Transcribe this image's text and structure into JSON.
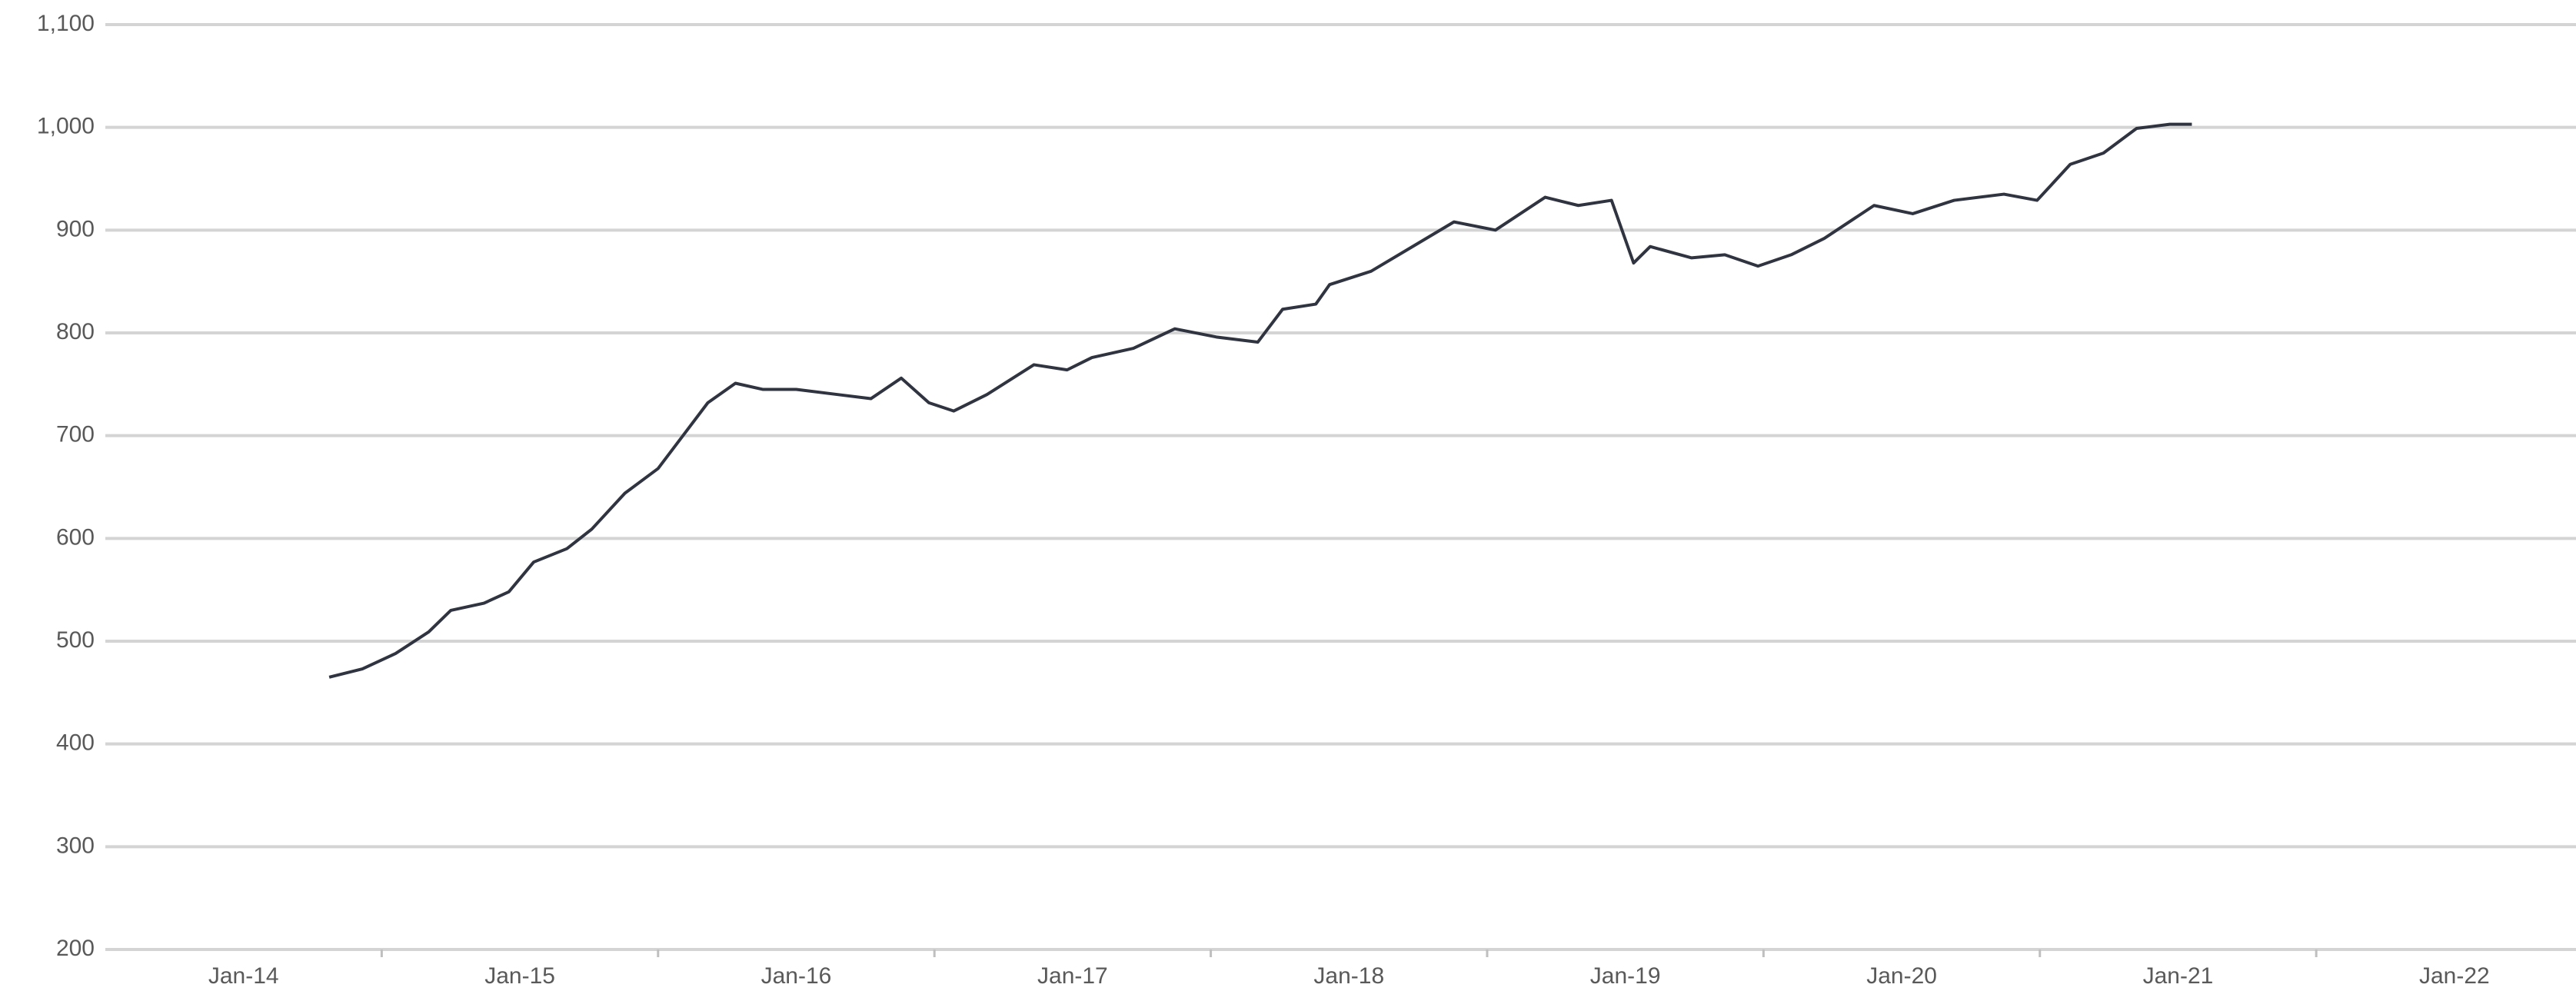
{
  "chart_data": {
    "type": "line",
    "x": [
      2014.31,
      2014.43,
      2014.55,
      2014.67,
      2014.75,
      2014.87,
      2014.96,
      2015.05,
      2015.17,
      2015.26,
      2015.38,
      2015.5,
      2015.59,
      2015.68,
      2015.78,
      2015.88,
      2016.0,
      2016.15,
      2016.27,
      2016.38,
      2016.48,
      2016.57,
      2016.69,
      2016.86,
      2016.98,
      2017.07,
      2017.22,
      2017.37,
      2017.52,
      2017.67,
      2017.76,
      2017.88,
      2017.93,
      2018.08,
      2018.23,
      2018.38,
      2018.53,
      2018.71,
      2018.83,
      2018.95,
      2019.03,
      2019.09,
      2019.24,
      2019.36,
      2019.48,
      2019.6,
      2019.72,
      2019.9,
      2020.04,
      2020.19,
      2020.37,
      2020.49,
      2020.61,
      2020.73,
      2020.85,
      2020.97,
      2021.05
    ],
    "series": [
      {
        "color": "#2f3440",
        "values": [
          465,
          473,
          488,
          509,
          530,
          537,
          548,
          577,
          590,
          609,
          644,
          668,
          700,
          732,
          751,
          745,
          745,
          740,
          736,
          756,
          732,
          724,
          740,
          769,
          764,
          776,
          785,
          804,
          796,
          791,
          823,
          828,
          847,
          860,
          884,
          908,
          900,
          932,
          924,
          929,
          868,
          884,
          873,
          876,
          865,
          876,
          892,
          924,
          916,
          929,
          935,
          929,
          964,
          975,
          999,
          1003,
          1003
        ]
      }
    ],
    "xlim": [
      2013.5,
      2022.44
    ],
    "xticks": [
      {
        "value": 2014,
        "label": "Jan-14"
      },
      {
        "value": 2015,
        "label": "Jan-15"
      },
      {
        "value": 2016,
        "label": "Jan-16"
      },
      {
        "value": 2017,
        "label": "Jan-17"
      },
      {
        "value": 2018,
        "label": "Jan-18"
      },
      {
        "value": 2019,
        "label": "Jan-19"
      },
      {
        "value": 2020,
        "label": "Jan-20"
      },
      {
        "value": 2021,
        "label": "Jan-21"
      },
      {
        "value": 2022,
        "label": "Jan-22"
      }
    ],
    "ylim": [
      200,
      1100
    ],
    "yticks": [
      200,
      300,
      400,
      500,
      600,
      700,
      800,
      900,
      {
        "value": 1000,
        "label": "1,000"
      },
      {
        "value": 1100,
        "label": "1,100"
      }
    ],
    "grid": true
  }
}
